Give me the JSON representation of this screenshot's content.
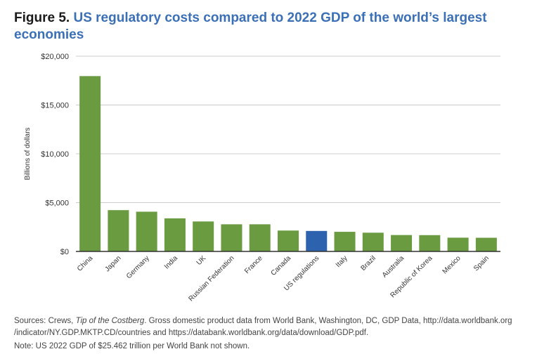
{
  "figure": {
    "label": "Figure 5.",
    "title": "US regulatory costs compared to 2022 GDP of the world’s largest economies"
  },
  "footer": {
    "sources_prefix": "Sources: Crews, ",
    "sources_italic": "Tip of the Costberg",
    "sources_rest": ". Gross domestic product data from World Bank, Washington, DC, GDP Data, http://data.worldbank.org /indicator/NY.GDP.MKTP.CD/countries and https://databank.worldbank.org/data/download/GDP.pdf.",
    "note": "Note: US 2022 GDP of $25.462 trillion per World Bank not shown."
  },
  "chart_data": {
    "type": "bar",
    "ylabel": "Billions of dollars",
    "ylim": [
      0,
      20000
    ],
    "yticks": [
      0,
      5000,
      10000,
      15000,
      20000
    ],
    "ytick_labels": [
      "$0",
      "$5,000",
      "$10,000",
      "$15,000",
      "$20,000"
    ],
    "grid": true,
    "categories": [
      "China",
      "Japan",
      "Germany",
      "India",
      "UK",
      "Russian Federation",
      "France",
      "Canada",
      "US regulations",
      "Italy",
      "Brazil",
      "Australia",
      "Republic of Korea",
      "Mexico",
      "Spain"
    ],
    "values": [
      17960,
      4230,
      4070,
      3390,
      3070,
      2780,
      2780,
      2140,
      2100,
      2010,
      1920,
      1680,
      1670,
      1410,
      1400
    ],
    "colors": {
      "default": "#6a9b41",
      "highlight": "#2d62ae",
      "grid": "#cccccc",
      "axis": "#333333"
    },
    "highlight_index": 8
  }
}
